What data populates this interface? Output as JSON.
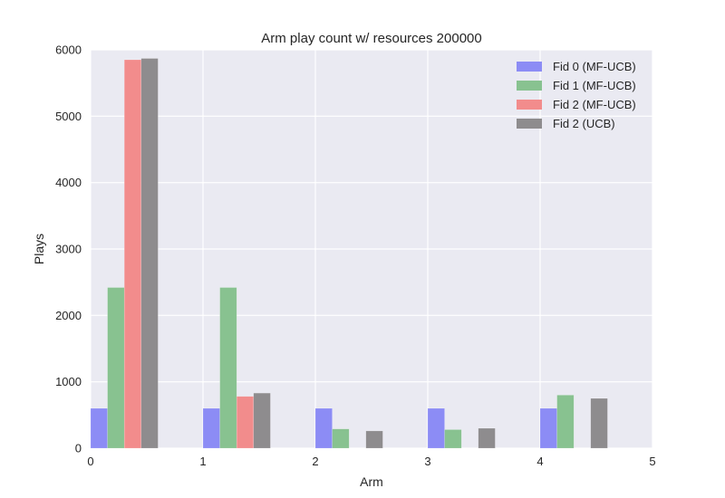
{
  "chart_data": {
    "type": "bar",
    "title": "Arm play count w/ resources 200000",
    "xlabel": "Arm",
    "ylabel": "Plays",
    "xlim": [
      0,
      5
    ],
    "ylim": [
      0,
      6000
    ],
    "xticks": [
      "0",
      "1",
      "2",
      "3",
      "4",
      "5"
    ],
    "yticks": [
      "0",
      "1000",
      "2000",
      "3000",
      "4000",
      "5000",
      "6000"
    ],
    "grid": true,
    "legend_position": "top-right",
    "bar_width": 0.15,
    "series": [
      {
        "name": "Fid 0 (MF-UCB)",
        "color": "#8c8cf5",
        "x": [
          0,
          1,
          2,
          3,
          4
        ],
        "values": [
          600,
          600,
          600,
          600,
          600
        ]
      },
      {
        "name": "Fid 1 (MF-UCB)",
        "color": "#88c290",
        "x": [
          0.15,
          1.15,
          2.15,
          3.15,
          4.15
        ],
        "values": [
          2420,
          2420,
          290,
          280,
          800
        ]
      },
      {
        "name": "Fid 2 (MF-UCB)",
        "color": "#f28c8c",
        "x": [
          0.3,
          1.3,
          2.3,
          3.3,
          4.3
        ],
        "values": [
          5850,
          780,
          0,
          0,
          0
        ]
      },
      {
        "name": "Fid 2 (UCB)",
        "color": "#8e8c8e",
        "x": [
          0.45,
          1.45,
          2.45,
          3.45,
          4.45
        ],
        "values": [
          5870,
          830,
          260,
          300,
          750
        ]
      }
    ]
  }
}
